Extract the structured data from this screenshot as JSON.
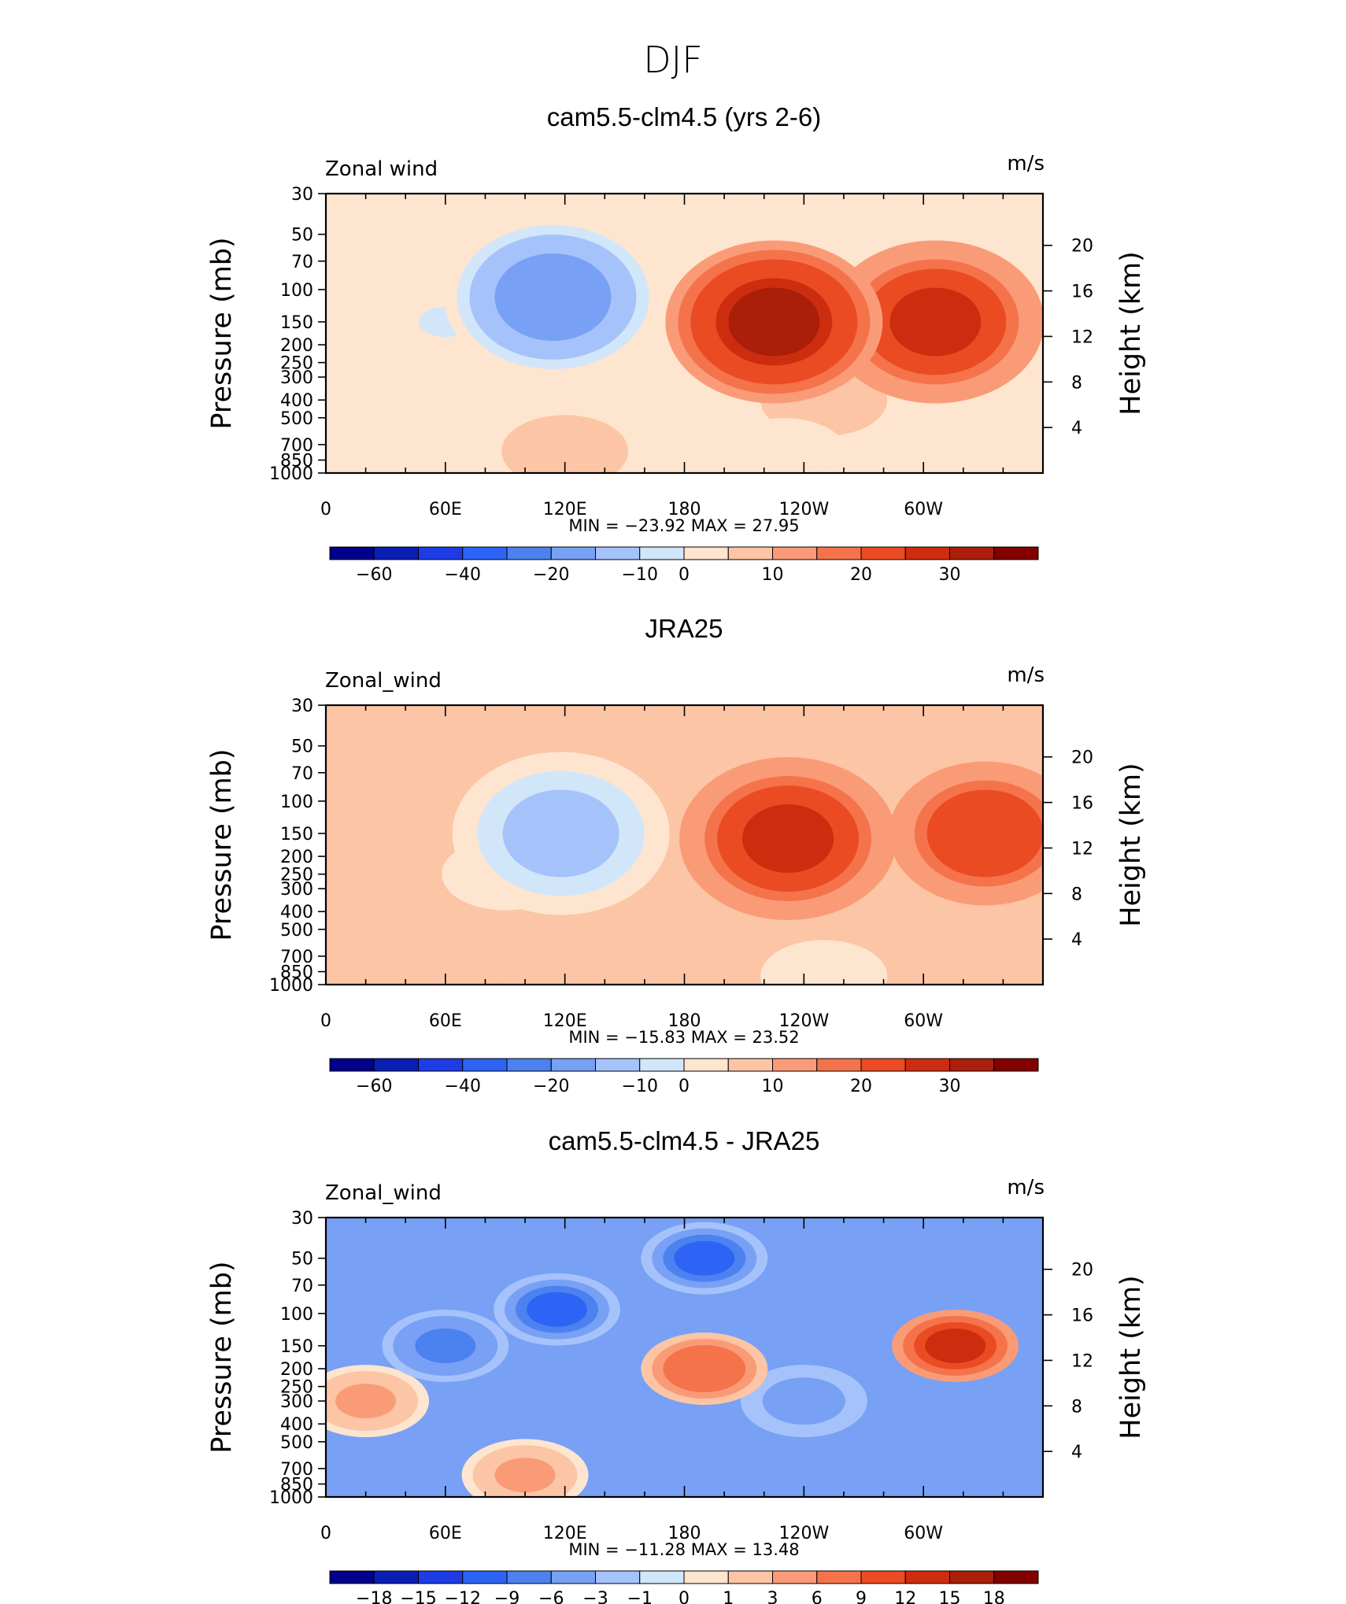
{
  "figure_title": "DJF",
  "chart_data": [
    {
      "type": "heatmap",
      "title": "cam5.5-clm4.5 (yrs 2-6)",
      "variable_label": "Zonal wind",
      "units_label": "m/s",
      "ylabel": "Pressure (mb)",
      "y2label": "Height (km)",
      "x_ticks": [
        "0",
        "60E",
        "120E",
        "180",
        "120W",
        "60W"
      ],
      "y_ticks": [
        "30",
        "50",
        "70",
        "100",
        "150",
        "200",
        "250",
        "300",
        "400",
        "500",
        "700",
        "850",
        "1000"
      ],
      "y2_ticks": [
        "20",
        "16",
        "12",
        "8",
        "4"
      ],
      "stats": "MIN = −23.92 MAX = 27.95",
      "min": -23.92,
      "max": 27.95,
      "features": [
        {
          "lon": 225,
          "p": 150,
          "value": 27.95
        },
        {
          "lon": 306,
          "p": 150,
          "value": 22
        },
        {
          "lon": 114,
          "p": 110,
          "value": -23.92
        },
        {
          "lon": 60,
          "p": 150,
          "value": -8
        },
        {
          "lon": 35,
          "p": 120,
          "value": -5
        },
        {
          "lon": 120,
          "p": 760,
          "value": 5
        },
        {
          "lon": 230,
          "p": 790,
          "value": -5
        },
        {
          "lon": 250,
          "p": 400,
          "value": 3
        }
      ],
      "colorbar": {
        "levels": [
          "−60",
          "−40",
          "−20",
          "−10",
          "0",
          "10",
          "20",
          "30"
        ]
      }
    },
    {
      "type": "heatmap",
      "title": "JRA25",
      "variable_label": "Zonal_wind",
      "units_label": "m/s",
      "ylabel": "Pressure (mb)",
      "y2label": "Height (km)",
      "x_ticks": [
        "0",
        "60E",
        "120E",
        "180",
        "120W",
        "60W"
      ],
      "y_ticks": [
        "30",
        "50",
        "70",
        "100",
        "150",
        "200",
        "250",
        "300",
        "400",
        "500",
        "700",
        "850",
        "1000"
      ],
      "y2_ticks": [
        "20",
        "16",
        "12",
        "8",
        "4"
      ],
      "stats": "MIN = −15.83 MAX = 23.52",
      "min": -15.83,
      "max": 23.52,
      "features": [
        {
          "lon": 232,
          "p": 160,
          "value": 23.52
        },
        {
          "lon": 331,
          "p": 150,
          "value": 18
        },
        {
          "lon": 118,
          "p": 150,
          "value": -15.83
        },
        {
          "lon": 90,
          "p": 250,
          "value": -5
        },
        {
          "lon": 110,
          "p": 760,
          "value": 5
        },
        {
          "lon": 250,
          "p": 900,
          "value": -5
        },
        {
          "lon": 270,
          "p": 45,
          "value": 3
        }
      ],
      "colorbar": {
        "levels": [
          "−60",
          "−40",
          "−20",
          "−10",
          "0",
          "10",
          "20",
          "30"
        ]
      }
    },
    {
      "type": "heatmap",
      "title": "cam5.5-clm4.5 - JRA25",
      "variable_label": "Zonal_wind",
      "units_label": "m/s",
      "ylabel": "Pressure (mb)",
      "y2label": "Height (km)",
      "x_ticks": [
        "0",
        "60E",
        "120E",
        "180",
        "120W",
        "60W"
      ],
      "y_ticks": [
        "30",
        "50",
        "70",
        "100",
        "150",
        "200",
        "250",
        "300",
        "400",
        "500",
        "700",
        "850",
        "1000"
      ],
      "y2_ticks": [
        "20",
        "16",
        "12",
        "8",
        "4"
      ],
      "stats": "MIN = −11.28 MAX = 13.48",
      "min": -11.28,
      "max": 13.48,
      "features": [
        {
          "lon": 316,
          "p": 150,
          "value": 13.48
        },
        {
          "lon": 190,
          "p": 200,
          "value": 9
        },
        {
          "lon": 116,
          "p": 95,
          "value": -11.28
        },
        {
          "lon": 190,
          "p": 50,
          "value": -9
        },
        {
          "lon": 60,
          "p": 150,
          "value": -6
        },
        {
          "lon": 240,
          "p": 300,
          "value": -4
        },
        {
          "lon": 100,
          "p": 760,
          "value": 4
        },
        {
          "lon": 20,
          "p": 300,
          "value": 4
        }
      ],
      "colorbar": {
        "levels": [
          "−18",
          "−15",
          "−12",
          "−9",
          "−6",
          "−3",
          "−1",
          "0",
          "1",
          "3",
          "6",
          "9",
          "12",
          "15",
          "18"
        ]
      }
    }
  ],
  "colors": {
    "palette": [
      "#00008a",
      "#0a1eb4",
      "#1e3ce6",
      "#2d64f5",
      "#4b82f0",
      "#78a0f5",
      "#a5c3fa",
      "#d2e6fa",
      "#fee5cf",
      "#fcc5a5",
      "#fa9b78",
      "#f5734b",
      "#eb4b23",
      "#cd2d0f",
      "#aa1e0a",
      "#820000"
    ],
    "topography": "#000000"
  }
}
